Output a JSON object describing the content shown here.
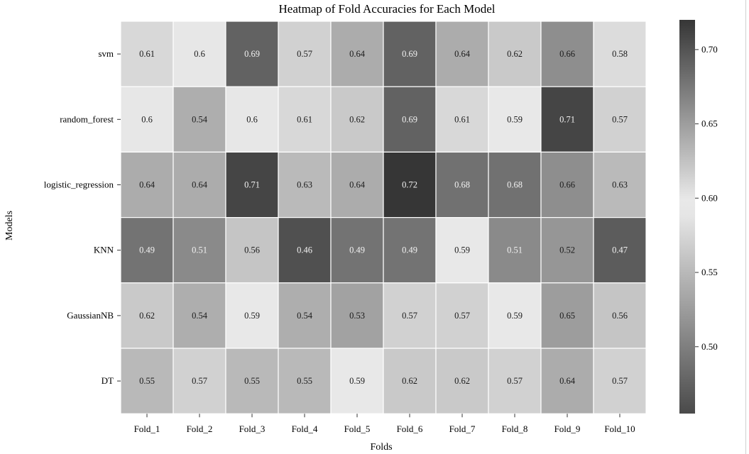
{
  "chart_data": {
    "type": "heatmap",
    "title": "Heatmap of Fold Accuracies for Each Model",
    "xlabel": "Folds",
    "ylabel": "Models",
    "x_categories": [
      "Fold_1",
      "Fold_2",
      "Fold_3",
      "Fold_4",
      "Fold_5",
      "Fold_6",
      "Fold_7",
      "Fold_8",
      "Fold_9",
      "Fold_10"
    ],
    "y_categories": [
      "svm",
      "random_forest",
      "logistic_regression",
      "KNN",
      "GaussianNB",
      "DT"
    ],
    "values": [
      [
        0.61,
        0.6,
        0.69,
        0.57,
        0.64,
        0.69,
        0.64,
        0.62,
        0.66,
        0.58
      ],
      [
        0.6,
        0.54,
        0.6,
        0.61,
        0.62,
        0.69,
        0.61,
        0.59,
        0.71,
        0.57
      ],
      [
        0.64,
        0.64,
        0.71,
        0.63,
        0.64,
        0.72,
        0.68,
        0.68,
        0.66,
        0.63
      ],
      [
        0.49,
        0.51,
        0.56,
        0.46,
        0.49,
        0.49,
        0.59,
        0.51,
        0.52,
        0.47
      ],
      [
        0.62,
        0.54,
        0.59,
        0.54,
        0.53,
        0.57,
        0.57,
        0.59,
        0.65,
        0.56
      ],
      [
        0.55,
        0.57,
        0.55,
        0.55,
        0.59,
        0.62,
        0.62,
        0.57,
        0.64,
        0.57
      ]
    ],
    "colorbar": {
      "ticks": [
        0.5,
        0.55,
        0.6,
        0.65,
        0.7
      ],
      "tick_labels": [
        "0.50",
        "0.55",
        "0.60",
        "0.65",
        "0.70"
      ]
    },
    "colormap": "diverging gray: dark gray at both ends, near-white at center",
    "colors": {
      "low": "#4a4a4a",
      "center": "#eeeeee",
      "high": "#363636"
    }
  }
}
